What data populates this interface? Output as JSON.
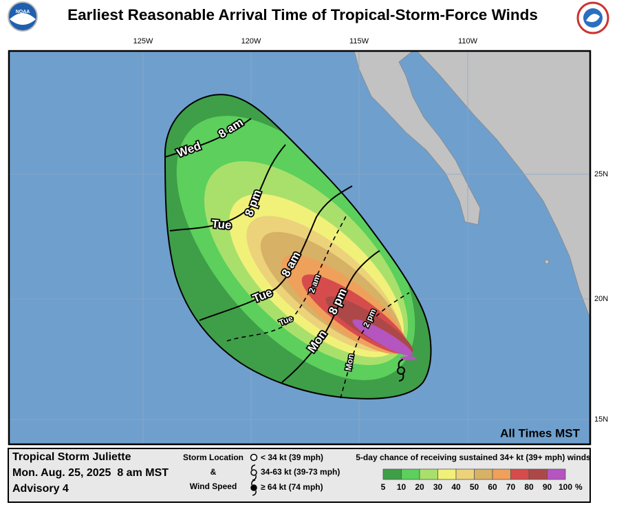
{
  "header": {
    "title": "Earliest Reasonable Arrival Time of Tropical-Storm-Force Winds"
  },
  "map": {
    "lon_labels": [
      "125W",
      "120W",
      "115W",
      "110W"
    ],
    "lat_labels": [
      "25N",
      "20N",
      "15N"
    ],
    "time_labels": [
      {
        "day": "Wed",
        "time": "8 am"
      },
      {
        "day": "Tue",
        "time": "8 pm"
      },
      {
        "day": "Tue",
        "time": "8 am"
      },
      {
        "day": "Tue",
        "time": "2 am"
      },
      {
        "day": "Mon",
        "time": "8 pm"
      },
      {
        "day": "Mon",
        "time": "2 pm"
      }
    ],
    "time_zone_note": "All Times MST"
  },
  "footer": {
    "storm_name": "Tropical Storm Juliette",
    "date": "Mon. Aug. 25, 2025  8 am MST",
    "advisory": "Advisory 4",
    "legend_title_1": "Storm Location",
    "legend_title_2": "&",
    "legend_title_3": "Wind Speed",
    "legend_items": [
      "< 34 kt (39 mph)",
      "34-63 kt (39-73 mph)",
      "≥ 64 kt (74 mph)"
    ],
    "scale_title": "5-day chance of receiving sustained 34+ kt (39+ mph) winds",
    "scale": [
      {
        "label": "5",
        "color": "#3f9e48"
      },
      {
        "label": "10",
        "color": "#5ccf5c"
      },
      {
        "label": "20",
        "color": "#a9e06c"
      },
      {
        "label": "30",
        "color": "#f1f17a"
      },
      {
        "label": "40",
        "color": "#ecd27a"
      },
      {
        "label": "50",
        "color": "#d7b166"
      },
      {
        "label": "60",
        "color": "#efa05a"
      },
      {
        "label": "70",
        "color": "#d64c4c"
      },
      {
        "label": "80",
        "color": "#ad4848"
      },
      {
        "label": "90",
        "color": "#b455c0"
      }
    ],
    "scale_end_label": "100",
    "scale_unit": "%"
  }
}
